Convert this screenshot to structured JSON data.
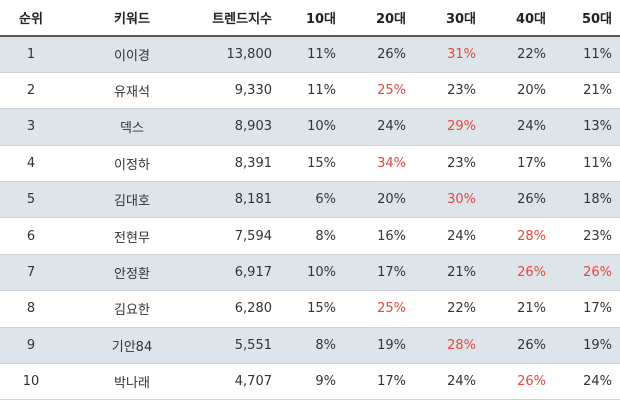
{
  "headers": [
    "순위",
    "키워드",
    "트렌드지수",
    "10대",
    "20대",
    "30대",
    "40대",
    "50대"
  ],
  "highlight_color": "#e8463c",
  "rows": [
    {
      "rank": "1",
      "keyword": "이이경",
      "index": "13,800",
      "age10": "11%",
      "age20": "26%",
      "age30": "31%",
      "age40": "22%",
      "age50": "11%",
      "highlight": [
        "age30"
      ]
    },
    {
      "rank": "2",
      "keyword": "유재석",
      "index": "9,330",
      "age10": "11%",
      "age20": "25%",
      "age30": "23%",
      "age40": "20%",
      "age50": "21%",
      "highlight": [
        "age20"
      ]
    },
    {
      "rank": "3",
      "keyword": "덱스",
      "index": "8,903",
      "age10": "10%",
      "age20": "24%",
      "age30": "29%",
      "age40": "24%",
      "age50": "13%",
      "highlight": [
        "age30"
      ]
    },
    {
      "rank": "4",
      "keyword": "이정하",
      "index": "8,391",
      "age10": "15%",
      "age20": "34%",
      "age30": "23%",
      "age40": "17%",
      "age50": "11%",
      "highlight": [
        "age20"
      ]
    },
    {
      "rank": "5",
      "keyword": "김대호",
      "index": "8,181",
      "age10": "6%",
      "age20": "20%",
      "age30": "30%",
      "age40": "26%",
      "age50": "18%",
      "highlight": [
        "age30"
      ]
    },
    {
      "rank": "6",
      "keyword": "전현무",
      "index": "7,594",
      "age10": "8%",
      "age20": "16%",
      "age30": "24%",
      "age40": "28%",
      "age50": "23%",
      "highlight": [
        "age40"
      ]
    },
    {
      "rank": "7",
      "keyword": "안정환",
      "index": "6,917",
      "age10": "10%",
      "age20": "17%",
      "age30": "21%",
      "age40": "26%",
      "age50": "26%",
      "highlight": [
        "age40",
        "age50"
      ]
    },
    {
      "rank": "8",
      "keyword": "김요한",
      "index": "6,280",
      "age10": "15%",
      "age20": "25%",
      "age30": "22%",
      "age40": "21%",
      "age50": "17%",
      "highlight": [
        "age20"
      ]
    },
    {
      "rank": "9",
      "keyword": "기안84",
      "index": "5,551",
      "age10": "8%",
      "age20": "19%",
      "age30": "28%",
      "age40": "26%",
      "age50": "19%",
      "highlight": [
        "age30"
      ]
    },
    {
      "rank": "10",
      "keyword": "박나래",
      "index": "4,707",
      "age10": "9%",
      "age20": "17%",
      "age30": "24%",
      "age40": "26%",
      "age50": "24%",
      "highlight": [
        "age40"
      ]
    }
  ]
}
